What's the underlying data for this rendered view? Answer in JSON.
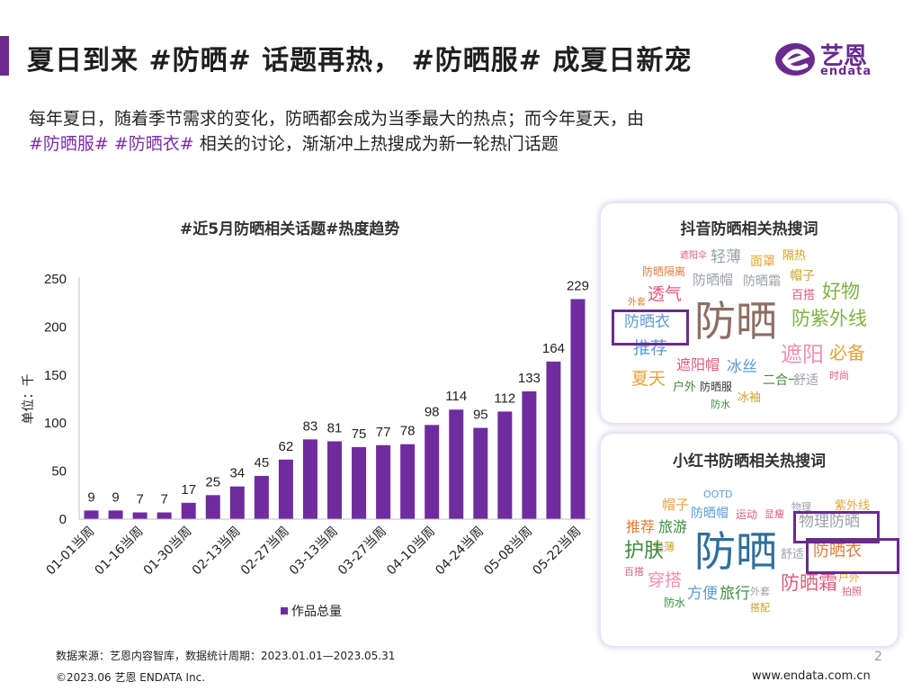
{
  "header": {
    "title": "夏日到来 #防晒# 话题再热， #防晒服# 成夏日新宠",
    "logo_cn": "艺恩",
    "logo_en": "endata"
  },
  "intro": {
    "line1": "每年夏日，随着季节需求的变化，防晒都会成为当季最大的热点；而今年夏天，由",
    "tag1": "#防晒服#",
    "tag2": "#防晒衣#",
    "line2_rest": " 相关的讨论，渐渐冲上热搜成为新一轮热门话题"
  },
  "chart_data": {
    "type": "bar",
    "title": "#近5月防晒相关话题#热度趋势",
    "ylabel": "单位：千",
    "xlabel": "",
    "ylim": [
      0,
      250
    ],
    "yticks": [
      0,
      50,
      100,
      150,
      200,
      250
    ],
    "categories": [
      "01-01当周",
      "",
      "01-16当周",
      "",
      "01-30当周",
      "",
      "02-13当周",
      "",
      "02-27当周",
      "",
      "03-13当周",
      "",
      "03-27当周",
      "",
      "04-10当周",
      "",
      "04-24当周",
      "",
      "05-08当周",
      "",
      "05-22当周"
    ],
    "series": [
      {
        "name": "作品总量",
        "color": "#6f2c9e",
        "values": [
          9,
          9,
          7,
          7,
          17,
          25,
          34,
          45,
          62,
          83,
          81,
          75,
          77,
          78,
          98,
          114,
          95,
          112,
          133,
          164,
          229
        ]
      }
    ],
    "legend": "bottom"
  },
  "douyin": {
    "title": "抖音防晒相关热搜词",
    "words": [
      {
        "t": "遮阳伞",
        "c": "#e05a7a"
      },
      {
        "t": "轻薄",
        "c": "#9aa0a6"
      },
      {
        "t": "面罩",
        "c": "#e6a23c"
      },
      {
        "t": "隔热",
        "c": "#d4a017"
      },
      {
        "t": "防晒隔离",
        "c": "#e07b3a"
      },
      {
        "t": "防晒帽",
        "c": "#9aa0a6"
      },
      {
        "t": "防晒霜",
        "c": "#9aa0a6"
      },
      {
        "t": "帽子",
        "c": "#c9a227"
      },
      {
        "t": "外套",
        "c": "#e07b3a"
      },
      {
        "t": "透气",
        "c": "#e05a7a"
      },
      {
        "t": "百搭",
        "c": "#e05a7a"
      },
      {
        "t": "好物",
        "c": "#7cb342"
      },
      {
        "t": "防晒衣",
        "c": "#5b9bd5"
      },
      {
        "t": "防晒",
        "c": "#8d6e63"
      },
      {
        "t": "防紫外线",
        "c": "#7cb342"
      },
      {
        "t": "推荐",
        "c": "#5b9bd5"
      },
      {
        "t": "遮阳",
        "c": "#f48fb1"
      },
      {
        "t": "必备",
        "c": "#e6a23c"
      },
      {
        "t": "夏天",
        "c": "#e6a23c"
      },
      {
        "t": "遮阳帽",
        "c": "#e05a7a"
      },
      {
        "t": "冰丝",
        "c": "#5b9bd5"
      },
      {
        "t": "户外",
        "c": "#3c8c3c"
      },
      {
        "t": "防晒服",
        "c": "#333333"
      },
      {
        "t": "二合一",
        "c": "#3c8c3c"
      },
      {
        "t": "舒适",
        "c": "#9aa0a6"
      },
      {
        "t": "时尚",
        "c": "#e05a7a"
      },
      {
        "t": "防水",
        "c": "#3c8c3c"
      },
      {
        "t": "冰袖",
        "c": "#c9a227"
      }
    ]
  },
  "xiaohongshu": {
    "title": "小红书防晒相关热搜词",
    "words": [
      {
        "t": "OOTD",
        "c": "#5b9bd5"
      },
      {
        "t": "物理",
        "c": "#9aa0a6"
      },
      {
        "t": "紫外线",
        "c": "#e6a23c"
      },
      {
        "t": "帽子",
        "c": "#e6a23c"
      },
      {
        "t": "防晒帽",
        "c": "#5b9bd5"
      },
      {
        "t": "运动",
        "c": "#e05a7a"
      },
      {
        "t": "显瘦",
        "c": "#e05a7a"
      },
      {
        "t": "推荐",
        "c": "#e07b3a"
      },
      {
        "t": "旅游",
        "c": "#3c8c3c"
      },
      {
        "t": "物理防晒",
        "c": "#9aa0a6"
      },
      {
        "t": "轻薄",
        "c": "#c9a227"
      },
      {
        "t": "护肤",
        "c": "#3c8c3c"
      },
      {
        "t": "防晒",
        "c": "#2e6f9e"
      },
      {
        "t": "舒适",
        "c": "#9aa0a6"
      },
      {
        "t": "防晒衣",
        "c": "#e07b3a"
      },
      {
        "t": "百搭",
        "c": "#e05a7a"
      },
      {
        "t": "穿搭",
        "c": "#f48fb1"
      },
      {
        "t": "防晒霜",
        "c": "#e05a7a"
      },
      {
        "t": "户外",
        "c": "#e6a23c"
      },
      {
        "t": "防水",
        "c": "#3c8c3c"
      },
      {
        "t": "方便",
        "c": "#5b9bd5"
      },
      {
        "t": "旅行",
        "c": "#3c8c3c"
      },
      {
        "t": "外套",
        "c": "#9aa0a6"
      },
      {
        "t": "拍照",
        "c": "#e05a7a"
      },
      {
        "t": "搭配",
        "c": "#c9a227"
      }
    ]
  },
  "footer": {
    "source": "数据来源：艺恩内容智库，数据统计周期：2023.01.01—2023.05.31",
    "copyright": "©2023.06 艺恩 ENDATA Inc.",
    "page": "2",
    "site": "www.endata.com.cn"
  }
}
